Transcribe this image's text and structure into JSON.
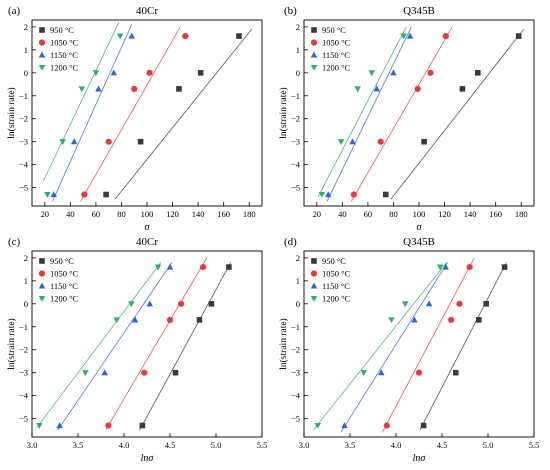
{
  "figure": {
    "panel_labels": [
      "(a)",
      "(b)",
      "(c)",
      "(d)"
    ]
  },
  "colors": {
    "950": "#3a3a3a",
    "1050": "#e8393c",
    "1150": "#2f63e0",
    "1200": "#2cae6f"
  },
  "chart_data": [
    {
      "type": "scatter",
      "panel": "(a)",
      "title": "40Cr",
      "xlabel": "σ",
      "ylabel": "ln(strain rate)",
      "xlim": [
        10,
        190
      ],
      "ylim": [
        -5.8,
        2.3
      ],
      "xticks": [
        20,
        40,
        60,
        80,
        100,
        120,
        140,
        160,
        180
      ],
      "yticks": [
        -5,
        -4,
        -3,
        -2,
        -1,
        0,
        1,
        2
      ],
      "legend_position": "top-left",
      "series": [
        {
          "name": "950 °C",
          "marker": "square",
          "color": "#3a3a3a",
          "x": [
            68,
            95,
            125,
            142,
            172
          ],
          "y": [
            -5.3,
            -3.0,
            -0.7,
            0.0,
            1.6
          ],
          "fit": [
            [
              75,
              -5.5
            ],
            [
              182,
              1.9
            ]
          ]
        },
        {
          "name": "1050 °C",
          "marker": "circle",
          "color": "#e8393c",
          "x": [
            51,
            70,
            90,
            102,
            130
          ],
          "y": [
            -5.3,
            -3.0,
            -0.7,
            0.0,
            1.6
          ],
          "fit": [
            [
              48,
              -5.6
            ],
            [
              126,
              2.0
            ]
          ]
        },
        {
          "name": "1150 °C",
          "marker": "triangle-up",
          "color": "#2f63e0",
          "x": [
            27,
            43,
            62,
            74,
            88
          ],
          "y": [
            -5.3,
            -3.0,
            -0.7,
            0.0,
            1.6
          ],
          "fit": [
            [
              26,
              -5.6
            ],
            [
              88,
              2.1
            ]
          ]
        },
        {
          "name": "1200 °C",
          "marker": "triangle-down",
          "color": "#2cae6f",
          "x": [
            22,
            34,
            49,
            60,
            79
          ],
          "y": [
            -5.3,
            -3.0,
            -0.7,
            0.0,
            1.6
          ],
          "fit": [
            [
              19,
              -4.7
            ],
            [
              78,
              2.2
            ]
          ]
        }
      ]
    },
    {
      "type": "scatter",
      "panel": "(b)",
      "title": "Q345B",
      "xlabel": "σ",
      "ylabel": "ln(strain rate)",
      "xlim": [
        10,
        190
      ],
      "ylim": [
        -5.8,
        2.3
      ],
      "xticks": [
        20,
        40,
        60,
        80,
        100,
        120,
        140,
        160,
        180
      ],
      "yticks": [
        -5,
        -4,
        -3,
        -2,
        -1,
        0,
        1,
        2
      ],
      "legend_position": "top-left",
      "series": [
        {
          "name": "950 °C",
          "marker": "square",
          "color": "#3a3a3a",
          "x": [
            74,
            104,
            134,
            146,
            178
          ],
          "y": [
            -5.3,
            -3.0,
            -0.7,
            0.0,
            1.6
          ],
          "fit": [
            [
              78,
              -5.5
            ],
            [
              182,
              1.9
            ]
          ]
        },
        {
          "name": "1050 °C",
          "marker": "circle",
          "color": "#e8393c",
          "x": [
            49,
            70,
            99,
            109,
            121
          ],
          "y": [
            -5.3,
            -3.0,
            -0.7,
            0.0,
            1.6
          ],
          "fit": [
            [
              47,
              -5.6
            ],
            [
              126,
              2.0
            ]
          ]
        },
        {
          "name": "1150 °C",
          "marker": "triangle-up",
          "color": "#2f63e0",
          "x": [
            29,
            48,
            67,
            80,
            93
          ],
          "y": [
            -5.3,
            -3.0,
            -0.7,
            0.0,
            1.6
          ],
          "fit": [
            [
              28,
              -5.6
            ],
            [
              94,
              2.0
            ]
          ]
        },
        {
          "name": "1200 °C",
          "marker": "triangle-down",
          "color": "#2cae6f",
          "x": [
            24,
            39,
            52,
            63,
            88
          ],
          "y": [
            -5.3,
            -3.0,
            -0.7,
            0.0,
            1.6
          ],
          "fit": [
            [
              21,
              -5.4
            ],
            [
              90,
              2.0
            ]
          ]
        }
      ]
    },
    {
      "type": "scatter",
      "panel": "(c)",
      "title": "40Cr",
      "xlabel": "lnσ",
      "ylabel": "ln(strain rate)",
      "xlim": [
        3.0,
        5.5
      ],
      "ylim": [
        -5.8,
        2.3
      ],
      "xticks": [
        3.0,
        3.5,
        4.0,
        4.5,
        5.0,
        5.5
      ],
      "yticks": [
        -5,
        -4,
        -3,
        -2,
        -1,
        0,
        1,
        2
      ],
      "legend_position": "top-left",
      "series": [
        {
          "name": "950 °C",
          "marker": "square",
          "color": "#3a3a3a",
          "x": [
            4.2,
            4.56,
            4.82,
            4.95,
            5.14
          ],
          "y": [
            -5.3,
            -3.0,
            -0.7,
            0.0,
            1.6
          ],
          "fit": [
            [
              4.17,
              -5.5
            ],
            [
              5.16,
              1.8
            ]
          ]
        },
        {
          "name": "1050 °C",
          "marker": "circle",
          "color": "#e8393c",
          "x": [
            3.83,
            4.22,
            4.5,
            4.62,
            4.86
          ],
          "y": [
            -5.3,
            -3.0,
            -0.7,
            0.0,
            1.6
          ],
          "fit": [
            [
              3.8,
              -5.5
            ],
            [
              4.9,
              2.0
            ]
          ]
        },
        {
          "name": "1150 °C",
          "marker": "triangle-up",
          "color": "#2f63e0",
          "x": [
            3.3,
            3.79,
            4.12,
            4.28,
            4.5
          ],
          "y": [
            -5.3,
            -3.0,
            -0.7,
            0.0,
            1.6
          ],
          "fit": [
            [
              3.28,
              -5.5
            ],
            [
              4.52,
              1.8
            ]
          ]
        },
        {
          "name": "1200 °C",
          "marker": "triangle-down",
          "color": "#2cae6f",
          "x": [
            3.08,
            3.58,
            3.92,
            4.08,
            4.37
          ],
          "y": [
            -5.3,
            -3.0,
            -0.7,
            0.0,
            1.6
          ],
          "fit": [
            [
              3.05,
              -5.4
            ],
            [
              4.4,
              1.8
            ]
          ]
        }
      ]
    },
    {
      "type": "scatter",
      "panel": "(d)",
      "title": "Q345B",
      "xlabel": "lnσ",
      "ylabel": "ln(strain rate)",
      "xlim": [
        3.0,
        5.5
      ],
      "ylim": [
        -5.8,
        2.3
      ],
      "xticks": [
        3.0,
        3.5,
        4.0,
        4.5,
        5.0,
        5.5
      ],
      "yticks": [
        -5,
        -4,
        -3,
        -2,
        -1,
        0,
        1,
        2
      ],
      "legend_position": "top-left",
      "series": [
        {
          "name": "950 °C",
          "marker": "square",
          "color": "#3a3a3a",
          "x": [
            4.3,
            4.65,
            4.9,
            4.98,
            5.18
          ],
          "y": [
            -5.3,
            -3.0,
            -0.7,
            0.0,
            1.6
          ],
          "fit": [
            [
              4.26,
              -5.5
            ],
            [
              5.2,
              1.8
            ]
          ]
        },
        {
          "name": "1050 °C",
          "marker": "circle",
          "color": "#e8393c",
          "x": [
            3.9,
            4.25,
            4.6,
            4.69,
            4.8
          ],
          "y": [
            -5.3,
            -3.0,
            -0.7,
            0.0,
            1.6
          ],
          "fit": [
            [
              3.85,
              -5.6
            ],
            [
              4.85,
              2.0
            ]
          ]
        },
        {
          "name": "1150 °C",
          "marker": "triangle-up",
          "color": "#2f63e0",
          "x": [
            3.44,
            3.84,
            4.2,
            4.36,
            4.54
          ],
          "y": [
            -5.3,
            -3.0,
            -0.7,
            0.0,
            1.6
          ],
          "fit": [
            [
              3.4,
              -5.6
            ],
            [
              4.56,
              1.8
            ]
          ]
        },
        {
          "name": "1200 °C",
          "marker": "triangle-down",
          "color": "#2cae6f",
          "x": [
            3.15,
            3.65,
            3.95,
            4.1,
            4.48
          ],
          "y": [
            -5.3,
            -3.0,
            -0.7,
            0.0,
            1.6
          ],
          "fit": [
            [
              3.1,
              -5.5
            ],
            [
              4.55,
              1.8
            ]
          ]
        }
      ]
    }
  ]
}
